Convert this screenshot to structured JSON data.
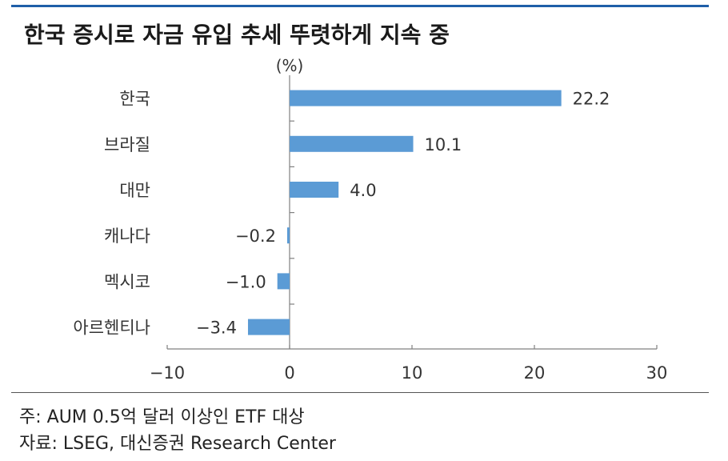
{
  "title": "한국 증시로 자금 유입 추세 뚜렷하게 지속 중",
  "notes": {
    "note": "주: AUM 0.5억 달러 이상인 ETF 대상",
    "source": "자료: LSEG, 대신증권 Research Center"
  },
  "colors": {
    "bar": "#5b9bd5",
    "accent": "#1f5fa8",
    "axis": "#808080"
  },
  "chart_data": {
    "type": "bar",
    "orientation": "horizontal",
    "unit_label": "(%)",
    "categories": [
      "한국",
      "브라질",
      "대만",
      "캐나다",
      "멕시코",
      "아르헨티나"
    ],
    "values": [
      22.2,
      10.1,
      4.0,
      -0.2,
      -1.0,
      -3.4
    ],
    "value_labels": [
      "22.2",
      "10.1",
      "4.0",
      "−0.2",
      "−1.0",
      "−3.4"
    ],
    "xlim": [
      -10,
      30
    ],
    "xticks": [
      -10,
      0,
      10,
      20,
      30
    ],
    "xtick_labels": [
      "−10",
      "0",
      "10",
      "20",
      "30"
    ],
    "grid": false,
    "legend": "none"
  }
}
